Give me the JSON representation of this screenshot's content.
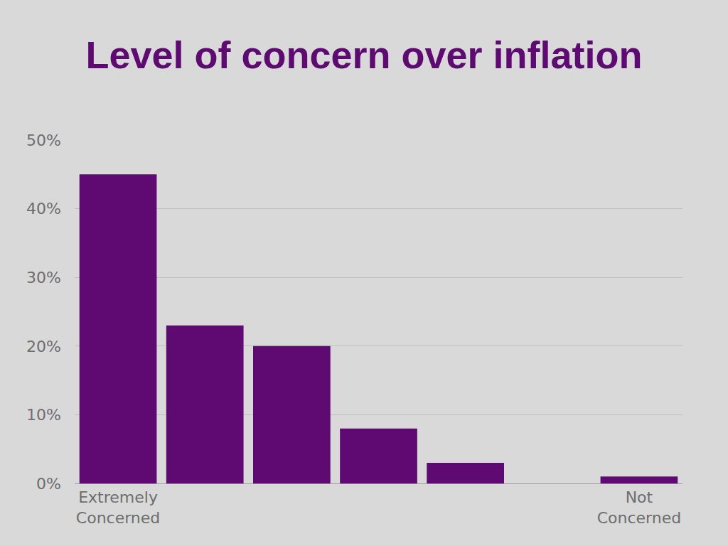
{
  "chart_data": {
    "type": "bar",
    "title": "Level of concern over inflation",
    "categories": [
      "Extremely Concerned",
      null,
      null,
      null,
      null,
      null,
      "Not Concerned"
    ],
    "values": [
      45,
      23,
      20,
      8,
      3,
      0,
      1
    ],
    "color": "#5f0a73",
    "ylim": [
      0,
      50
    ],
    "yticks": [
      {
        "value": 0,
        "label": "0%"
      },
      {
        "value": 10,
        "label": "10%"
      },
      {
        "value": 20,
        "label": "20%"
      },
      {
        "value": 30,
        "label": "30%"
      },
      {
        "value": 40,
        "label": "40%"
      },
      {
        "value": 50,
        "label": "50%"
      }
    ],
    "grid": true
  }
}
